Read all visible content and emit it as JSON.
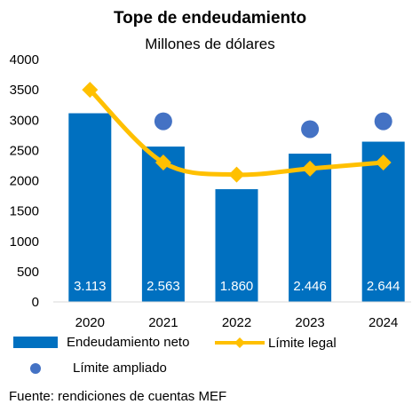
{
  "chart_data": {
    "type": "bar",
    "title": "Tope de endeudamiento",
    "subtitle": "Millones de dólares",
    "categories": [
      "2020",
      "2021",
      "2022",
      "2023",
      "2024"
    ],
    "series": [
      {
        "name": "Endeudamiento neto",
        "type": "bar",
        "values": [
          3113,
          2563,
          1860,
          2446,
          2644
        ],
        "labels": [
          "3.113",
          "2.563",
          "1.860",
          "2.446",
          "2.644"
        ],
        "color": "#0070C0"
      },
      {
        "name": "Límite legal",
        "type": "line",
        "smooth": true,
        "marker": "diamond",
        "values": [
          3500,
          2300,
          2100,
          2200,
          2300
        ],
        "color": "#FFC000"
      },
      {
        "name": "Límite ampliado",
        "type": "scatter",
        "marker": "circle",
        "values": [
          null,
          2980,
          null,
          2850,
          2980
        ],
        "color": "#4472C4"
      }
    ],
    "ylim": [
      0,
      4000
    ],
    "yticks": [
      0,
      500,
      1000,
      1500,
      2000,
      2500,
      3000,
      3500,
      4000
    ],
    "grid": false,
    "legend_position": "bottom"
  },
  "source": "Fuente: rendiciones de cuentas MEF"
}
